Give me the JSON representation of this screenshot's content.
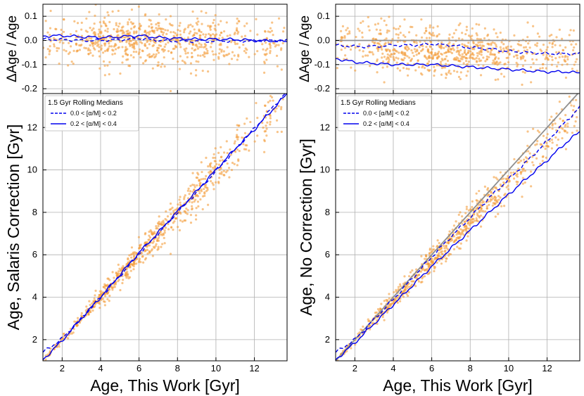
{
  "chart_data": [
    {
      "id": "left",
      "type": "scatter",
      "top_panel": {
        "ylabel": "ΔAge / Age",
        "ylim": [
          -0.22,
          0.15
        ],
        "yticks": [
          -0.2,
          -0.1,
          0.0,
          0.1
        ],
        "reference_line": null,
        "series": [
          {
            "name": "0.0 < [α/M] < 0.2",
            "style": "dashed",
            "x": [
              1,
              2,
              3,
              4,
              5,
              6,
              7,
              8,
              9,
              10,
              11,
              12,
              13,
              13.7
            ],
            "y": [
              0.005,
              0.003,
              0.0,
              0.0,
              0.003,
              0.008,
              0.0,
              -0.003,
              -0.003,
              -0.003,
              -0.002,
              -0.002,
              0.0,
              0.0
            ]
          },
          {
            "name": "0.2 < [α/M] < 0.4",
            "style": "solid",
            "x": [
              1,
              2,
              3,
              4,
              5,
              6,
              7,
              8,
              9,
              10,
              11,
              12,
              13,
              13.7
            ],
            "y": [
              0.018,
              0.02,
              0.015,
              0.012,
              0.015,
              0.02,
              0.012,
              0.008,
              0.005,
              0.005,
              0.004,
              0.0,
              -0.002,
              -0.005
            ]
          }
        ]
      },
      "main_panel": {
        "xlabel": "Age, This Work [Gyr]",
        "ylabel": "Age, Salaris Correction [Gyr]",
        "xlim": [
          1,
          13.7
        ],
        "ylim": [
          1,
          13.6
        ],
        "xticks": [
          2,
          4,
          6,
          8,
          10,
          12
        ],
        "yticks": [
          2,
          4,
          6,
          8,
          10,
          12
        ],
        "legend_title": "1.5 Gyr Rolling Medians",
        "legend_position": "top-left",
        "series": [
          {
            "name": "0.0 < [α/M] < 0.2",
            "style": "dashed",
            "x": [
              1,
              2,
              3,
              4,
              5,
              6,
              7,
              8,
              9,
              10,
              11,
              12,
              13,
              13.7
            ],
            "y": [
              1.4,
              2.05,
              3.0,
              4.0,
              5.0,
              6.05,
              7.0,
              8.0,
              8.95,
              9.95,
              10.95,
              11.95,
              13.0,
              13.7
            ]
          },
          {
            "name": "0.2 < [α/M] < 0.4",
            "style": "solid",
            "x": [
              1,
              2,
              3,
              4,
              5,
              6,
              7,
              8,
              9,
              10,
              11,
              12,
              13,
              13.7
            ],
            "y": [
              1.05,
              1.95,
              3.0,
              4.0,
              5.05,
              6.1,
              7.05,
              8.05,
              9.0,
              10.0,
              11.0,
              11.9,
              12.9,
              13.6
            ]
          }
        ],
        "identity_line": false
      },
      "scatter": {
        "n_points": 700,
        "point_color": "#f39c3a",
        "relative_offset": 0.0,
        "relative_spread": 0.05
      }
    },
    {
      "id": "right",
      "type": "scatter",
      "top_panel": {
        "ylabel": "ΔAge / Age",
        "ylim": [
          -0.22,
          0.15
        ],
        "yticks": [
          -0.2,
          -0.1,
          0.0,
          0.1
        ],
        "reference_line": 0.0,
        "series": [
          {
            "name": "0.0 < [α/M] < 0.2",
            "style": "dashed",
            "x": [
              1,
              2,
              3,
              4,
              5,
              6,
              7,
              8,
              9,
              10,
              11,
              12,
              13,
              13.7
            ],
            "y": [
              -0.02,
              -0.025,
              -0.025,
              -0.02,
              -0.02,
              -0.015,
              -0.02,
              -0.03,
              -0.035,
              -0.045,
              -0.05,
              -0.055,
              -0.055,
              -0.055
            ]
          },
          {
            "name": "0.2 < [α/M] < 0.4",
            "style": "solid",
            "x": [
              1,
              2,
              3,
              4,
              5,
              6,
              7,
              8,
              9,
              10,
              11,
              12,
              13,
              13.7
            ],
            "y": [
              -0.075,
              -0.09,
              -0.095,
              -0.1,
              -0.1,
              -0.1,
              -0.105,
              -0.11,
              -0.115,
              -0.12,
              -0.125,
              -0.13,
              -0.13,
              -0.135
            ]
          }
        ]
      },
      "main_panel": {
        "xlabel": "Age, This Work [Gyr]",
        "ylabel": "Age, No Correction [Gyr]",
        "xlim": [
          1,
          13.7
        ],
        "ylim": [
          1,
          13.6
        ],
        "xticks": [
          2,
          4,
          6,
          8,
          10,
          12
        ],
        "yticks": [
          2,
          4,
          6,
          8,
          10,
          12
        ],
        "legend_title": "1.5 Gyr Rolling Medians",
        "legend_position": "top-left",
        "series": [
          {
            "name": "0.0 < [α/M] < 0.2",
            "style": "dashed",
            "x": [
              1,
              2,
              3,
              4,
              5,
              6,
              7,
              8,
              9,
              10,
              11,
              12,
              13,
              13.7
            ],
            "y": [
              1.4,
              2.0,
              2.95,
              3.9,
              4.9,
              5.9,
              6.85,
              7.75,
              8.7,
              9.55,
              10.45,
              11.35,
              12.3,
              12.95
            ]
          },
          {
            "name": "0.2 < [α/M] < 0.4",
            "style": "solid",
            "x": [
              1,
              2,
              3,
              4,
              5,
              6,
              7,
              8,
              9,
              10,
              11,
              12,
              13,
              13.7
            ],
            "y": [
              1.05,
              1.85,
              2.75,
              3.65,
              4.55,
              5.45,
              6.3,
              7.15,
              8.0,
              8.85,
              9.65,
              10.45,
              11.3,
              11.8
            ]
          }
        ],
        "identity_line": true
      },
      "scatter": {
        "n_points": 700,
        "point_color": "#f39c3a",
        "relative_offset": -0.05,
        "relative_spread": 0.05
      }
    }
  ],
  "tick_labels": {
    "top_y": [
      "-0.2",
      "-0.1",
      "0.0",
      "0.1"
    ],
    "main_x": [
      "2",
      "4",
      "6",
      "8",
      "10",
      "12"
    ],
    "main_y": [
      "2",
      "4",
      "6",
      "8",
      "10",
      "12"
    ]
  },
  "colors": {
    "median": "#0000ee",
    "scatter": "#f39c3a",
    "grid": "#b0b0b0",
    "identity": "#8f8f8f"
  }
}
